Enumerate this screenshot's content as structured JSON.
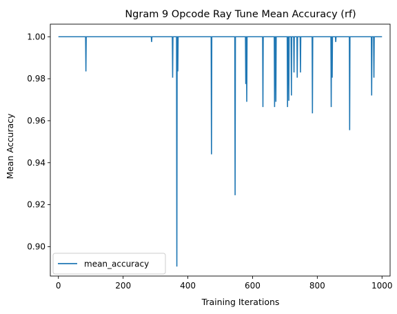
{
  "chart_data": {
    "type": "line",
    "title": "Ngram 9 Opcode Ray Tune Mean Accuracy (rf)",
    "xlabel": "Training Iterations",
    "ylabel": "Mean Accuracy",
    "xlim": [
      -25,
      1025
    ],
    "ylim": [
      0.886,
      1.006
    ],
    "xticks": [
      0,
      200,
      400,
      600,
      800,
      1000
    ],
    "yticks": [
      0.9,
      0.92,
      0.94,
      0.96,
      0.98,
      1.0
    ],
    "xtick_labels": [
      "0",
      "200",
      "400",
      "600",
      "800",
      "1000"
    ],
    "ytick_labels": [
      "0.90",
      "0.92",
      "0.94",
      "0.96",
      "0.98",
      "1.00"
    ],
    "grid": false,
    "legend_position": "lower-left",
    "baseline": 1.0,
    "dips": [
      {
        "x": 85,
        "y": 0.9835
      },
      {
        "x": 288,
        "y": 0.9975
      },
      {
        "x": 353,
        "y": 0.9805
      },
      {
        "x": 366,
        "y": 0.8905
      },
      {
        "x": 369,
        "y": 0.9835
      },
      {
        "x": 473,
        "y": 0.944
      },
      {
        "x": 546,
        "y": 0.9245
      },
      {
        "x": 579,
        "y": 0.9775
      },
      {
        "x": 582,
        "y": 0.969
      },
      {
        "x": 632,
        "y": 0.9665
      },
      {
        "x": 668,
        "y": 0.9665
      },
      {
        "x": 672,
        "y": 0.969
      },
      {
        "x": 708,
        "y": 0.9665
      },
      {
        "x": 712,
        "y": 0.9695
      },
      {
        "x": 720,
        "y": 0.972
      },
      {
        "x": 728,
        "y": 0.983
      },
      {
        "x": 738,
        "y": 0.9805
      },
      {
        "x": 748,
        "y": 0.983
      },
      {
        "x": 785,
        "y": 0.9635
      },
      {
        "x": 843,
        "y": 0.9665
      },
      {
        "x": 846,
        "y": 0.9805
      },
      {
        "x": 857,
        "y": 0.9975
      },
      {
        "x": 900,
        "y": 0.9555
      },
      {
        "x": 968,
        "y": 0.972
      },
      {
        "x": 975,
        "y": 0.9805
      }
    ],
    "series": [
      {
        "name": "mean_accuracy",
        "color": "#1f77b4",
        "x_start": 0,
        "x_end": 1000
      }
    ]
  }
}
